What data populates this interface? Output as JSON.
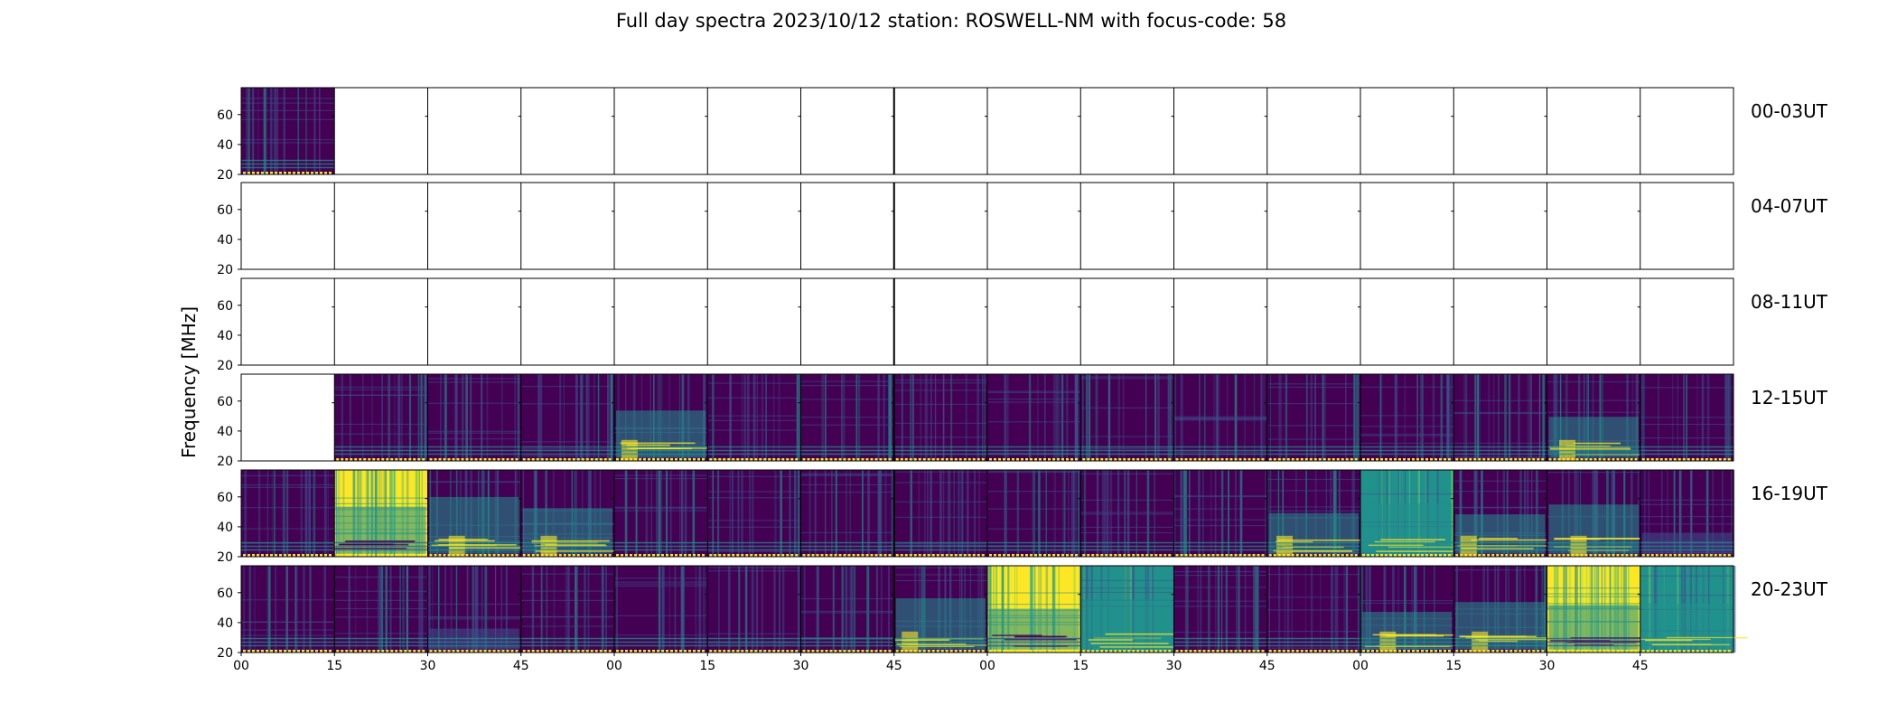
{
  "title": "Full day spectra 2023/10/12 station: ROSWELL-NM with focus-code: 58",
  "ylabel": "Frequency [MHz]",
  "yticks": [
    "20",
    "40",
    "60"
  ],
  "xticks": [
    "00",
    "15",
    "30",
    "45",
    "00",
    "15",
    "30",
    "45",
    "00",
    "15",
    "30",
    "45",
    "00",
    "15",
    "30",
    "45"
  ],
  "rows": [
    {
      "label": "00-03UT",
      "cells": [
        2,
        0,
        0,
        0,
        0,
        0,
        0,
        0,
        0,
        0,
        0,
        0,
        0,
        0,
        0,
        0
      ]
    },
    {
      "label": "04-07UT",
      "cells": [
        0,
        0,
        0,
        0,
        0,
        0,
        0,
        0,
        0,
        0,
        0,
        0,
        0,
        0,
        0,
        0
      ]
    },
    {
      "label": "08-11UT",
      "cells": [
        0,
        0,
        0,
        0,
        0,
        0,
        0,
        0,
        0,
        0,
        0,
        0,
        0,
        0,
        0,
        0
      ]
    },
    {
      "label": "12-15UT",
      "cells": [
        0,
        2,
        2,
        2,
        4,
        2,
        2,
        2,
        2,
        2,
        2,
        2,
        2,
        2,
        4,
        2
      ]
    },
    {
      "label": "16-19UT",
      "cells": [
        2,
        7,
        4,
        4,
        2,
        2,
        2,
        2,
        2,
        2,
        2,
        4,
        5,
        4,
        4,
        3
      ]
    },
    {
      "label": "20-23UT",
      "cells": [
        2,
        2,
        3,
        2,
        2,
        2,
        2,
        4,
        8,
        5,
        2,
        2,
        4,
        4,
        7,
        5
      ]
    }
  ],
  "chart_data": {
    "type": "heatmap",
    "title": "Full day spectra 2023/10/12 station: ROSWELL-NM with focus-code: 58",
    "xlabel": "",
    "ylabel": "Frequency [MHz]",
    "ylim": [
      20,
      78
    ],
    "yticks": [
      20,
      40,
      60
    ],
    "xticks": [
      "00",
      "15",
      "30",
      "45",
      "00",
      "15",
      "30",
      "45",
      "00",
      "15",
      "30",
      "45",
      "00",
      "15",
      "30",
      "45"
    ],
    "rows": [
      "00-03UT",
      "04-07UT",
      "08-11UT",
      "12-15UT",
      "16-19UT",
      "20-23UT"
    ],
    "colormap": "viridis",
    "colors": {
      "low": "#440154",
      "mid": "#21918c",
      "high": "#fde725"
    }
  }
}
